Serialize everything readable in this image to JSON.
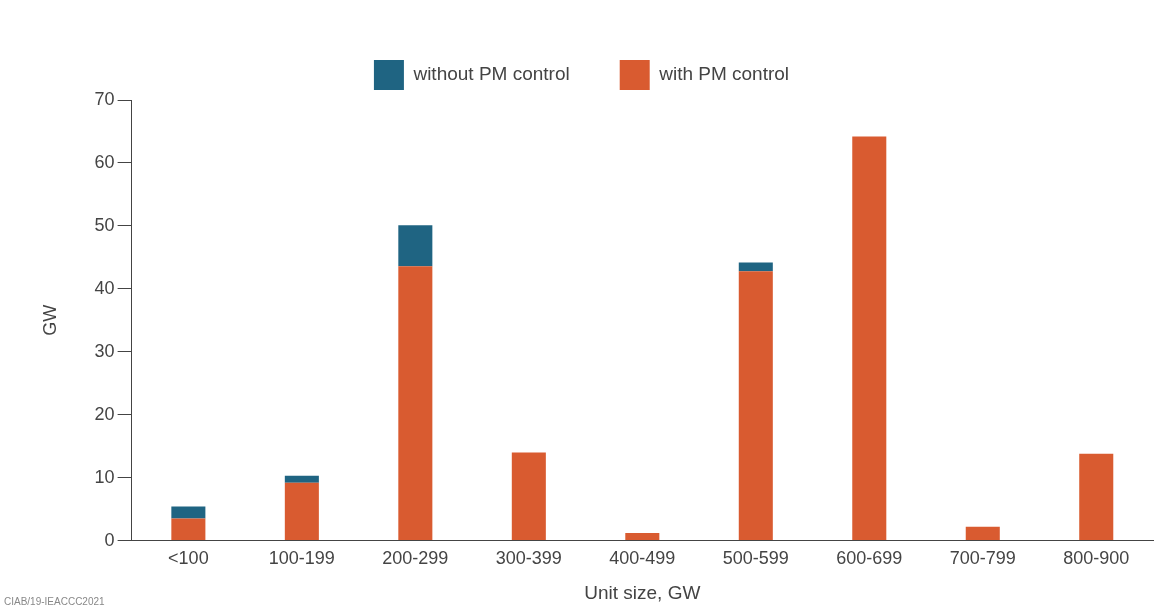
{
  "chart_data": {
    "type": "bar",
    "stacked": true,
    "xlabel": "Unit size, GW",
    "ylabel": "GW",
    "categories": [
      "<100",
      "100-199",
      "200-299",
      "300-399",
      "400-499",
      "500-599",
      "600-699",
      "700-799",
      "800-900"
    ],
    "series": [
      {
        "name": "with PM control",
        "color": "#d95b30",
        "values": [
          3.5,
          9.2,
          43.6,
          14.0,
          1.2,
          42.8,
          64.2,
          2.2,
          13.8
        ]
      },
      {
        "name": "without PM control",
        "color": "#1f6482",
        "values": [
          1.9,
          1.1,
          6.5,
          null,
          null,
          1.4,
          null,
          null,
          null
        ]
      }
    ],
    "ylim": [
      0,
      70
    ],
    "yticks": [
      0,
      10,
      20,
      30,
      40,
      50,
      60,
      70
    ],
    "grid": false,
    "legend": "top left",
    "annotations": [
      "CIAB/19-IEACCC2021"
    ]
  }
}
